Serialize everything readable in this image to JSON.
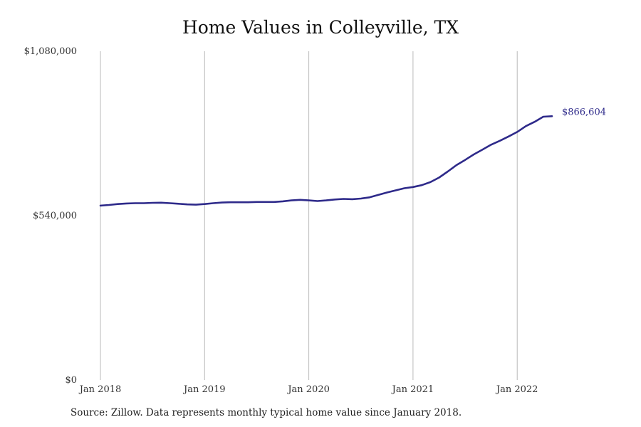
{
  "chart_data": {
    "type": "line",
    "title": "Home Values in Colleyville, TX",
    "xlabel": "",
    "ylabel": "",
    "ylim": [
      0,
      1080000
    ],
    "y_ticks": [
      0,
      540000,
      1080000
    ],
    "y_tick_labels": [
      "$0",
      "$540,000",
      "$1,080,000"
    ],
    "x_tick_labels": [
      "Jan 2018",
      "Jan 2019",
      "Jan 2020",
      "Jan 2021",
      "Jan 2022"
    ],
    "grid": "vertical lines at each January",
    "line_color": "#2e2a8a",
    "end_label": "$866,604",
    "x": [
      "2018-01",
      "2018-02",
      "2018-03",
      "2018-04",
      "2018-05",
      "2018-06",
      "2018-07",
      "2018-08",
      "2018-09",
      "2018-10",
      "2018-11",
      "2018-12",
      "2019-01",
      "2019-02",
      "2019-03",
      "2019-04",
      "2019-05",
      "2019-06",
      "2019-07",
      "2019-08",
      "2019-09",
      "2019-10",
      "2019-11",
      "2019-12",
      "2020-01",
      "2020-02",
      "2020-03",
      "2020-04",
      "2020-05",
      "2020-06",
      "2020-07",
      "2020-08",
      "2020-09",
      "2020-10",
      "2020-11",
      "2020-12",
      "2021-01",
      "2021-02",
      "2021-03",
      "2021-04",
      "2021-05",
      "2021-06",
      "2021-07",
      "2021-08",
      "2021-09",
      "2021-10",
      "2021-11",
      "2021-12",
      "2022-01",
      "2022-02",
      "2022-03",
      "2022-04",
      "2022-05"
    ],
    "values": [
      573000,
      575000,
      578000,
      580000,
      581000,
      581000,
      582000,
      582500,
      581000,
      579000,
      577000,
      576000,
      578000,
      581000,
      583000,
      584000,
      584000,
      584000,
      585000,
      585000,
      585000,
      587000,
      590000,
      592000,
      590000,
      588000,
      590000,
      593000,
      595000,
      594000,
      596000,
      600000,
      608000,
      616000,
      623000,
      630000,
      634000,
      640000,
      650000,
      665000,
      685000,
      706000,
      723000,
      741000,
      757000,
      773000,
      786000,
      800000,
      815000,
      834000,
      848000,
      865000,
      866604
    ]
  },
  "source_note": "Source: Zillow. Data represents monthly typical home value since January 2018."
}
